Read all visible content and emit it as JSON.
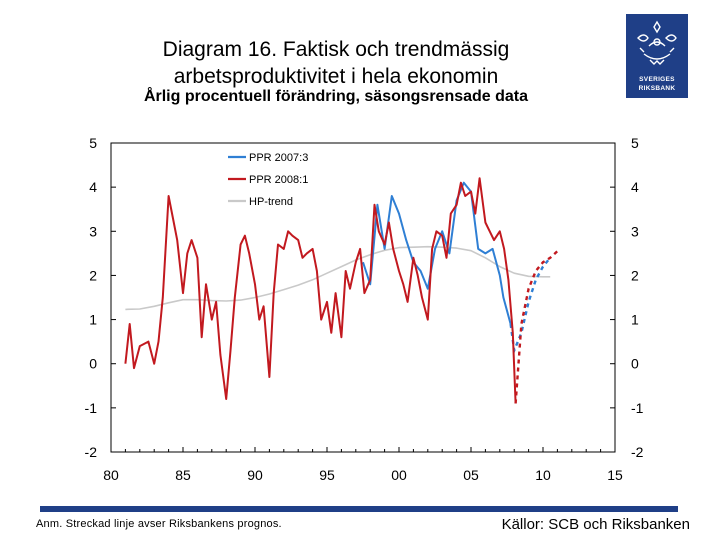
{
  "slide": {
    "title_line1": "Diagram 16. Faktisk och trendmässig",
    "title_line2": "arbetsproduktivitet i hela ekonomin",
    "subtitle": "Årlig procentuell förändring, säsongsrensade data",
    "note": "Anm. Streckad linje avser Riksbankens prognos.",
    "source": "Källor: SCB och Riksbanken",
    "logo_line1": "SVERIGES",
    "logo_line2": "RIKSBANK",
    "logo_icon": "crown-lion-icon",
    "brand_color": "#1f3f87"
  },
  "chart_data": {
    "type": "line",
    "title": "Diagram 16. Faktisk och trendmässig arbetsproduktivitet i hela ekonomin",
    "subtitle": "Årlig procentuell förändring, säsongsrensade data",
    "xlabel": "",
    "ylabel": "",
    "xlim": [
      80,
      115
    ],
    "ylim": [
      -2,
      5
    ],
    "x_ticks": [
      "80",
      "85",
      "90",
      "95",
      "00",
      "05",
      "10",
      "15"
    ],
    "x_tick_values": [
      80,
      85,
      90,
      95,
      100,
      105,
      110,
      115
    ],
    "y_ticks": [
      "5",
      "4",
      "3",
      "2",
      "1",
      "0",
      "-1",
      "-2"
    ],
    "y_tick_values": [
      5,
      4,
      3,
      2,
      1,
      0,
      -1,
      -2
    ],
    "dual_axis": true,
    "grid": false,
    "legend_position": "top-left",
    "series": [
      {
        "name": "PPR 2007:3",
        "color": "#2f7fd4",
        "x": [
          97.5,
          98.0,
          98.5,
          99.0,
          99.5,
          100.0,
          100.5,
          101.0,
          101.5,
          102.0,
          102.5,
          103.0,
          103.5,
          104.0,
          104.5,
          105.0,
          105.5,
          106.0,
          106.5,
          107.0,
          107.25,
          107.5,
          107.75
        ],
        "y": [
          2.3,
          1.8,
          3.6,
          2.6,
          3.8,
          3.4,
          2.8,
          2.3,
          2.1,
          1.7,
          2.6,
          3.0,
          2.5,
          3.7,
          4.1,
          3.9,
          2.6,
          2.5,
          2.6,
          2.0,
          1.5,
          1.2,
          0.9
        ],
        "forecast_x": [
          107.75,
          108.0,
          108.5,
          109.0,
          109.5,
          110.0,
          110.5
        ],
        "forecast_y": [
          0.9,
          0.3,
          0.7,
          1.4,
          1.9,
          2.2,
          2.4
        ]
      },
      {
        "name": "PPR 2008:1",
        "color": "#c2191f",
        "x": [
          81.0,
          81.3,
          81.6,
          82.0,
          82.3,
          82.6,
          83.0,
          83.3,
          83.6,
          84.0,
          84.3,
          84.6,
          85.0,
          85.3,
          85.6,
          86.0,
          86.3,
          86.6,
          87.0,
          87.3,
          87.6,
          88.0,
          88.3,
          88.6,
          89.0,
          89.3,
          89.6,
          90.0,
          90.3,
          90.6,
          91.0,
          91.3,
          91.6,
          92.0,
          92.3,
          92.6,
          93.0,
          93.3,
          93.6,
          94.0,
          94.3,
          94.6,
          95.0,
          95.3,
          95.6,
          96.0,
          96.3,
          96.6,
          97.0,
          97.3,
          97.6,
          98.0,
          98.3,
          98.6,
          99.0,
          99.3,
          99.6,
          100.0,
          100.3,
          100.6,
          101.0,
          101.3,
          101.6,
          102.0,
          102.3,
          102.6,
          103.0,
          103.3,
          103.6,
          104.0,
          104.3,
          104.6,
          105.0,
          105.3,
          105.6,
          106.0,
          106.3,
          106.6,
          107.0,
          107.3,
          107.6,
          107.9,
          108.1
        ],
        "y": [
          0.0,
          0.9,
          -0.1,
          0.4,
          0.45,
          0.5,
          0.0,
          0.5,
          1.5,
          3.8,
          3.3,
          2.8,
          1.6,
          2.5,
          2.8,
          2.4,
          0.6,
          1.8,
          1.0,
          1.4,
          0.2,
          -0.8,
          0.3,
          1.5,
          2.7,
          2.9,
          2.5,
          1.8,
          1.0,
          1.3,
          -0.3,
          1.6,
          2.7,
          2.6,
          3.0,
          2.9,
          2.8,
          2.4,
          2.5,
          2.6,
          2.1,
          1.0,
          1.4,
          0.7,
          1.6,
          0.6,
          2.1,
          1.7,
          2.3,
          2.6,
          1.6,
          1.9,
          3.6,
          3.0,
          2.7,
          3.2,
          2.6,
          2.1,
          1.8,
          1.4,
          2.4,
          2.0,
          1.5,
          1.0,
          2.6,
          3.0,
          2.9,
          2.4,
          3.4,
          3.6,
          4.1,
          3.8,
          3.9,
          3.4,
          4.2,
          3.2,
          3.0,
          2.8,
          3.0,
          2.6,
          1.9,
          0.7,
          -0.9
        ],
        "forecast_x": [
          108.1,
          108.5,
          109.0,
          109.5,
          110.0,
          110.5,
          111.0
        ],
        "forecast_y": [
          -0.9,
          0.9,
          1.7,
          2.1,
          2.3,
          2.4,
          2.55
        ]
      },
      {
        "name": "HP-trend",
        "color": "#c9c9c9",
        "x": [
          81.0,
          82.0,
          83.0,
          84.0,
          85.0,
          86.0,
          87.0,
          88.0,
          89.0,
          90.0,
          91.0,
          92.0,
          93.0,
          94.0,
          95.0,
          96.0,
          97.0,
          98.0,
          99.0,
          100.0,
          101.0,
          102.0,
          103.0,
          104.0,
          105.0,
          106.0,
          107.0,
          108.0,
          109.0,
          110.0,
          110.5
        ],
        "y": [
          1.23,
          1.24,
          1.3,
          1.38,
          1.45,
          1.45,
          1.43,
          1.42,
          1.44,
          1.5,
          1.58,
          1.68,
          1.78,
          1.9,
          2.05,
          2.2,
          2.35,
          2.47,
          2.57,
          2.63,
          2.64,
          2.65,
          2.64,
          2.62,
          2.56,
          2.4,
          2.2,
          2.05,
          1.98,
          1.97,
          1.97
        ]
      }
    ]
  }
}
